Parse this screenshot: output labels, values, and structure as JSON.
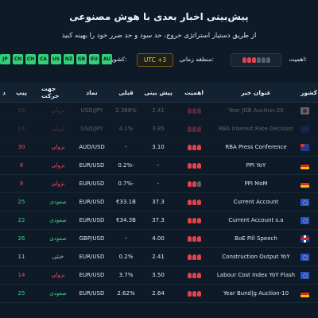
{
  "header": {
    "title": "پیش‌بینی اخبار بعدی با هوش مصنوعی",
    "subtitle": "از طریق دستیار استراتژی خروج، حد سود و حد ضرر خود را بهینه کنید"
  },
  "filters": {
    "importance_label": "اهمیت:",
    "timezone_label": "منطقه زمانی:",
    "timezone_value": "UTC +3",
    "country_label": "کشورها:",
    "countries": [
      "JP",
      "CN",
      "CH",
      "CA",
      "US",
      "NZ",
      "GB",
      "EU",
      "AU"
    ]
  },
  "table": {
    "headers": {
      "country": "کشور",
      "title": "عنوان خبر",
      "importance": "اهمیت",
      "forecast": "پیش بینی",
      "previous": "قبلی",
      "symbol": "نماد",
      "direction": "جهت حرکت",
      "pip": "پیپ",
      "d": "د"
    },
    "rows": [
      {
        "flag": "jp",
        "title": "Year JGB Auction-20",
        "importance": [
          1,
          1,
          1
        ],
        "forecast": "2.41",
        "previous": "2.368%",
        "symbol": "USD/JPY",
        "direction": "نزولی",
        "dir_class": "red",
        "pip": "16",
        "pip_class": "red",
        "faded": true
      },
      {
        "flag": "nz",
        "title": "RBA Interest Rate Decision",
        "importance": [
          1,
          1,
          1
        ],
        "forecast": "3.85",
        "previous": "4.1%",
        "symbol": "USD/JPY",
        "direction": "نزولی",
        "dir_class": "red",
        "pip": "14",
        "pip_class": "red",
        "faded": true
      },
      {
        "flag": "au",
        "title": "RBA Press Conference",
        "importance": [
          1,
          1,
          1
        ],
        "forecast": "3.10",
        "previous": "-",
        "symbol": "AUD/USD",
        "direction": "نزولی",
        "dir_class": "red",
        "pip": "30",
        "pip_class": "red",
        "faded": false
      },
      {
        "flag": "de",
        "title": "PPI YoY",
        "importance": [
          1,
          1,
          1
        ],
        "forecast": "-",
        "previous": "0.2%-",
        "symbol": "EUR/USD",
        "direction": "نزولی",
        "dir_class": "red",
        "pip": "8",
        "pip_class": "red",
        "faded": false
      },
      {
        "flag": "de",
        "title": "PPI MoM",
        "importance": [
          1,
          1,
          0
        ],
        "forecast": "-",
        "previous": "0.7%-",
        "symbol": "EUR/USD",
        "direction": "نزولی",
        "dir_class": "red",
        "pip": "9",
        "pip_class": "red",
        "faded": false
      },
      {
        "flag": "eu",
        "title": "Current Account",
        "importance": [
          1,
          1,
          1
        ],
        "forecast": "37.3",
        "previous": "€33.1B",
        "symbol": "EUR/USD",
        "direction": "صعودی",
        "dir_class": "green",
        "pip": "25",
        "pip_class": "green",
        "faded": false
      },
      {
        "flag": "eu",
        "title": "Current Account s.a",
        "importance": [
          1,
          1,
          1
        ],
        "forecast": "37.3",
        "previous": "€34.3B",
        "symbol": "EUR/USD",
        "direction": "صعودی",
        "dir_class": "green",
        "pip": "22",
        "pip_class": "green",
        "faded": false
      },
      {
        "flag": "gb",
        "title": "BoE Pill Speech",
        "importance": [
          1,
          1,
          1
        ],
        "forecast": "4.00",
        "previous": "-",
        "symbol": "GBP/USD",
        "direction": "صعودی",
        "dir_class": "green",
        "pip": "26",
        "pip_class": "green",
        "faded": false
      },
      {
        "flag": "eu",
        "title": "Construction Output YoY",
        "importance": [
          1,
          1,
          1
        ],
        "forecast": "2.41",
        "previous": "0.2%",
        "symbol": "EUR/USD",
        "direction": "خنثی",
        "dir_class": "grey",
        "pip": "11",
        "pip_class": "grey",
        "faded": false
      },
      {
        "flag": "eu",
        "title": "Labour Cost Index YoY Flash",
        "importance": [
          1,
          1,
          1
        ],
        "forecast": "3.50",
        "previous": "3.7%",
        "symbol": "EUR/USD",
        "direction": "نزولی",
        "dir_class": "red",
        "pip": "14",
        "pip_class": "red",
        "faded": false
      },
      {
        "flag": "de",
        "title": "Year Bund|g Auction-10",
        "importance": [
          1,
          1,
          1
        ],
        "forecast": "2.64",
        "previous": "2.62%",
        "symbol": "EUR/USD",
        "direction": "صعودی",
        "dir_class": "green",
        "pip": "25",
        "pip_class": "green",
        "faded": false
      }
    ]
  },
  "colors": {
    "bg": "#0e1a27",
    "green": "#3fd07e",
    "red": "#ec4f58",
    "gold": "#f1c84a"
  }
}
